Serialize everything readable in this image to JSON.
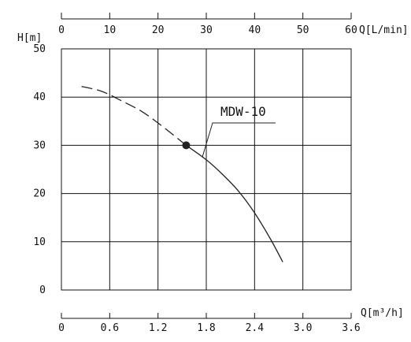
{
  "chart_data": {
    "type": "line",
    "title": "",
    "ylabel": "H[m]",
    "xlabel": "Q[m³/h]",
    "x2label": "Q[L/min]",
    "ylim": [
      0,
      50
    ],
    "xlim": [
      0,
      3.6
    ],
    "x2lim": [
      0,
      60
    ],
    "y_ticks": [
      "0",
      "10",
      "20",
      "30",
      "40",
      "50"
    ],
    "x_ticks": [
      "0",
      "0.6",
      "1.2",
      "1.8",
      "2.4",
      "3.0",
      "3.6"
    ],
    "x2_ticks": [
      "0",
      "10",
      "20",
      "30",
      "40",
      "50",
      "60"
    ],
    "grid": true,
    "series": [
      {
        "name": "MDW-10",
        "color": "#222222",
        "dashed": {
          "x": [
            0.25,
            0.5,
            0.75,
            1.0,
            1.25,
            1.55
          ],
          "y": [
            42.2,
            41.2,
            39.2,
            37.0,
            34.0,
            30.0
          ]
        },
        "solid": {
          "x": [
            1.55,
            1.8,
            2.0,
            2.2,
            2.4,
            2.6,
            2.75
          ],
          "y": [
            30.0,
            27.0,
            24.0,
            20.5,
            16.0,
            10.5,
            5.8
          ]
        }
      }
    ],
    "operating_point": {
      "x": 1.55,
      "y": 30.0
    },
    "annotation": "MDW-10"
  }
}
